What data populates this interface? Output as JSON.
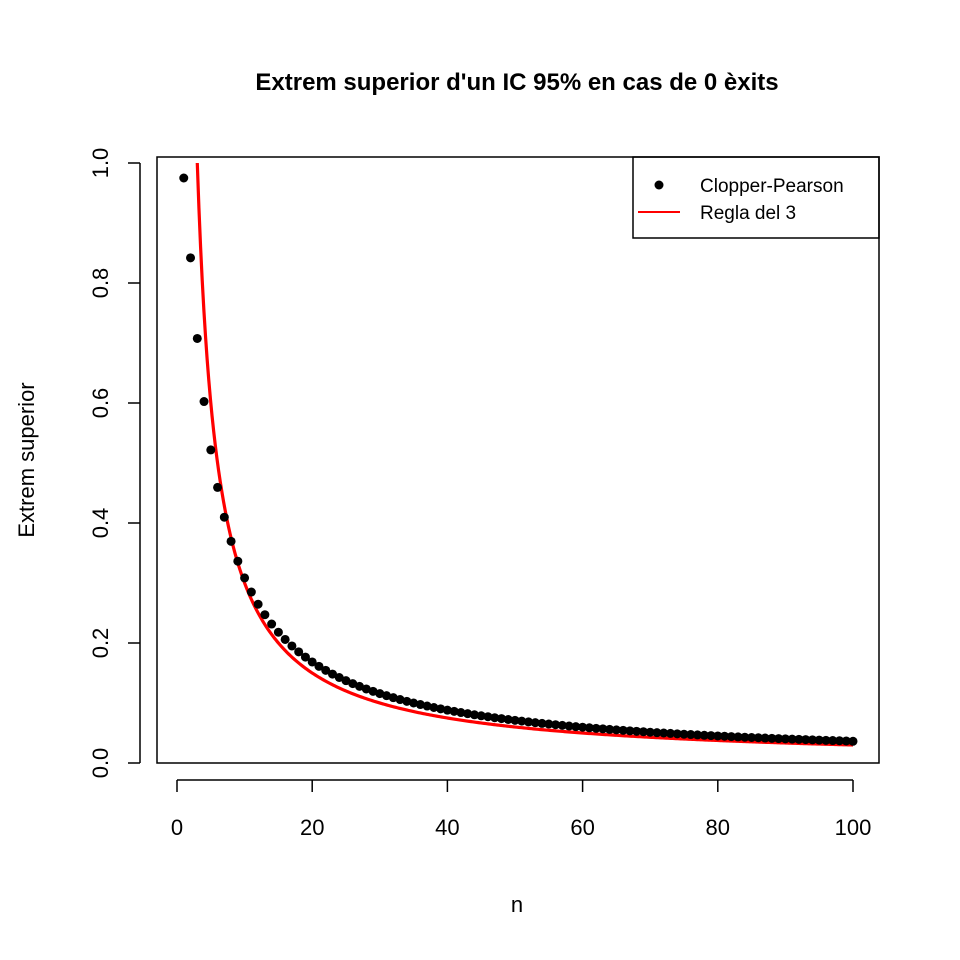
{
  "chart_data": {
    "type": "scatter",
    "title": "Extrem superior d'un IC 95% en cas de 0 èxits",
    "xlabel": "n",
    "ylabel": "Extrem superior",
    "xlim": [
      0,
      100
    ],
    "ylim": [
      0,
      1
    ],
    "xticks": [
      "0",
      "20",
      "40",
      "60",
      "80",
      "100"
    ],
    "yticks": [
      "0.0",
      "0.2",
      "0.4",
      "0.6",
      "0.8",
      "1.0"
    ],
    "grid": false,
    "legend_position": "top-right",
    "legend": [
      {
        "label": "Clopper-Pearson",
        "marker": "point",
        "color": "#000000"
      },
      {
        "label": "Regla del 3",
        "marker": "line",
        "color": "#ff0000"
      }
    ],
    "series": [
      {
        "name": "Clopper-Pearson",
        "kind": "points",
        "color": "#000000",
        "x": [
          1,
          2,
          3,
          4,
          5,
          6,
          7,
          8,
          9,
          10,
          11,
          12,
          13,
          14,
          15,
          16,
          17,
          18,
          19,
          20,
          21,
          22,
          23,
          24,
          25,
          26,
          27,
          28,
          29,
          30,
          31,
          32,
          33,
          34,
          35,
          36,
          37,
          38,
          39,
          40,
          41,
          42,
          43,
          44,
          45,
          46,
          47,
          48,
          49,
          50,
          51,
          52,
          53,
          54,
          55,
          56,
          57,
          58,
          59,
          60,
          61,
          62,
          63,
          64,
          65,
          66,
          67,
          68,
          69,
          70,
          71,
          72,
          73,
          74,
          75,
          76,
          77,
          78,
          79,
          80,
          81,
          82,
          83,
          84,
          85,
          86,
          87,
          88,
          89,
          90,
          91,
          92,
          93,
          94,
          95,
          96,
          97,
          98,
          99,
          100
        ],
        "y": [
          0.975,
          0.8419,
          0.7076,
          0.6024,
          0.5218,
          0.4593,
          0.4096,
          0.3694,
          0.3363,
          0.3085,
          0.2849,
          0.2646,
          0.2471,
          0.2316,
          0.218,
          0.2059,
          0.1951,
          0.1853,
          0.1765,
          0.1684,
          0.1611,
          0.1544,
          0.1482,
          0.1425,
          0.1372,
          0.1323,
          0.1277,
          0.1234,
          0.1194,
          0.1157,
          0.1122,
          0.1089,
          0.1058,
          0.1028,
          0.1,
          0.0974,
          0.0949,
          0.0925,
          0.0903,
          0.0881,
          0.0861,
          0.0841,
          0.0822,
          0.0804,
          0.0787,
          0.0771,
          0.0755,
          0.074,
          0.0725,
          0.0711,
          0.0698,
          0.0685,
          0.0672,
          0.066,
          0.0649,
          0.0638,
          0.0627,
          0.0616,
          0.0606,
          0.0596,
          0.0587,
          0.0578,
          0.0569,
          0.056,
          0.0552,
          0.0544,
          0.0536,
          0.0528,
          0.0521,
          0.0513,
          0.0506,
          0.05,
          0.0493,
          0.0486,
          0.048,
          0.0474,
          0.0468,
          0.0462,
          0.0457,
          0.0451,
          0.0446,
          0.044,
          0.0435,
          0.043,
          0.0425,
          0.0421,
          0.0416,
          0.0411,
          0.0407,
          0.0403,
          0.0398,
          0.0394,
          0.039,
          0.0386,
          0.0382,
          0.0378,
          0.0374,
          0.0371,
          0.0367,
          0.0362
        ]
      },
      {
        "name": "Regla del 3",
        "kind": "line",
        "color": "#ff0000",
        "function": "3/n",
        "x_from": 3,
        "x_to": 100
      }
    ]
  }
}
